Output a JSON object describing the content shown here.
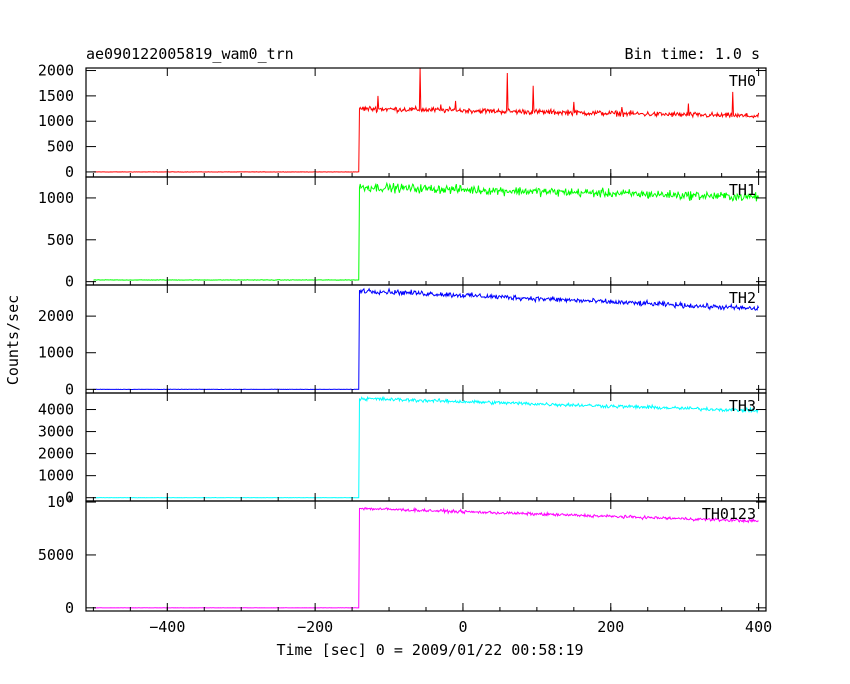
{
  "header": {
    "title": "ae090122005819_wam0_trn",
    "bin_time": "Bin time: 1.0 s"
  },
  "chart_data": {
    "type": "line",
    "xlabel": "Time [sec] 0 = 2009/01/22 00:58:19",
    "ylabel": "Counts/sec",
    "xlim": [
      -510,
      410
    ],
    "xticks": [
      -400,
      -200,
      0,
      200,
      400
    ],
    "xtick_labels": [
      "−400",
      "−200",
      "0",
      "200",
      "400"
    ],
    "x_start": -500,
    "x_end": 400,
    "onset_time": -140,
    "panels": [
      {
        "name": "TH0",
        "color": "#ff0000",
        "ylim": [
          -100,
          2050
        ],
        "yticks": [
          0,
          500,
          1000,
          1500,
          2000
        ],
        "ytick_labels": [
          "0",
          "500",
          "1000",
          "1500",
          "2000"
        ],
        "pre_level": 0,
        "peak_level": 1250,
        "end_level": 1100,
        "noise": 45,
        "spikes": [
          {
            "t": -58,
            "v": 2050
          },
          {
            "t": 60,
            "v": 1950
          },
          {
            "t": 95,
            "v": 1700
          },
          {
            "t": -115,
            "v": 1500
          },
          {
            "t": -10,
            "v": 1400
          },
          {
            "t": 150,
            "v": 1380
          },
          {
            "t": 305,
            "v": 1350
          },
          {
            "t": 365,
            "v": 1580
          },
          {
            "t": -30,
            "v": 1330
          },
          {
            "t": 215,
            "v": 1280
          }
        ]
      },
      {
        "name": "TH1",
        "color": "#00ff00",
        "ylim": [
          -40,
          1250
        ],
        "yticks": [
          0,
          500,
          1000
        ],
        "ytick_labels": [
          "0",
          "500",
          "1000"
        ],
        "pre_level": 20,
        "peak_level": 1130,
        "end_level": 1010,
        "noise": 45,
        "spikes": []
      },
      {
        "name": "TH2",
        "color": "#0000ff",
        "ylim": [
          -100,
          2850
        ],
        "yticks": [
          0,
          1000,
          2000
        ],
        "ytick_labels": [
          "0",
          "1000",
          "2000"
        ],
        "pre_level": 0,
        "peak_level": 2700,
        "end_level": 2200,
        "noise": 60,
        "spikes": []
      },
      {
        "name": "TH3",
        "color": "#00ffff",
        "ylim": [
          -150,
          4750
        ],
        "yticks": [
          0,
          1000,
          2000,
          3000,
          4000
        ],
        "ytick_labels": [
          "0",
          "1000",
          "2000",
          "3000",
          "4000"
        ],
        "pre_level": 0,
        "peak_level": 4500,
        "end_level": 3950,
        "noise": 70,
        "spikes": []
      },
      {
        "name": "TH0123",
        "color": "#ff00ff",
        "ylim": [
          -300,
          10100
        ],
        "yticks": [
          0,
          5000,
          10000
        ],
        "ytick_labels": [
          "0",
          "5000",
          "10⁴"
        ],
        "pre_level": 0,
        "peak_level": 9400,
        "end_level": 8200,
        "noise": 120,
        "spikes": []
      }
    ]
  }
}
